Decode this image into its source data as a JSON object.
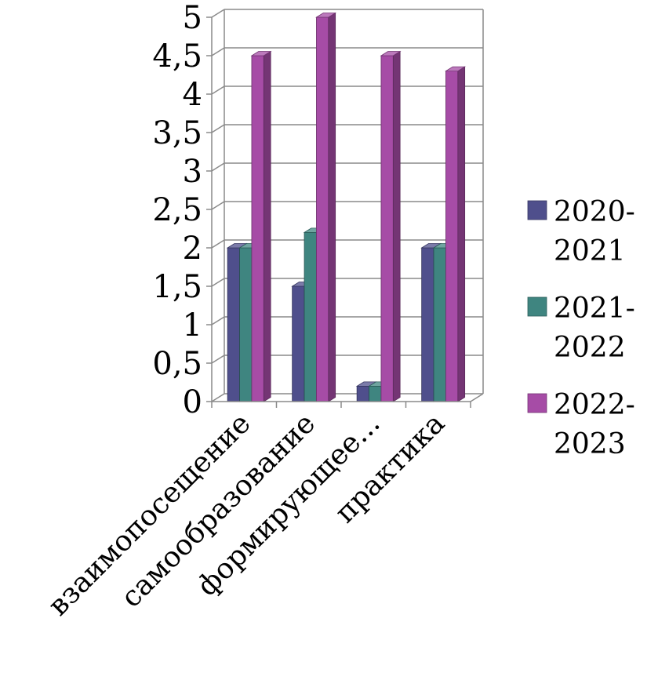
{
  "chart_data": {
    "type": "bar",
    "categories": [
      "взаимопосещение",
      "самообразование",
      "формирующее...",
      "практика"
    ],
    "series": [
      {
        "name": "2020-2021",
        "values": [
          2,
          1.5,
          0.2,
          2
        ],
        "color": "#4F4F8C"
      },
      {
        "name": "2021-2022",
        "values": [
          2,
          2.2,
          0.2,
          2
        ],
        "color": "#3F8580"
      },
      {
        "name": "2022-2023",
        "values": [
          4.5,
          5,
          4.5,
          4.3
        ],
        "color": "#A64CA6"
      }
    ],
    "y_ticks": [
      "0",
      "0,5",
      "1",
      "1,5",
      "2",
      "2,5",
      "3",
      "3,5",
      "4",
      "4,5",
      "5"
    ],
    "ylim": [
      0,
      5
    ],
    "legend": {
      "placement": "right",
      "entries": [
        {
          "line1": "2020-",
          "line2": "2021"
        },
        {
          "line1": "2021-",
          "line2": "2022"
        },
        {
          "line1": "2022-",
          "line2": "2023"
        }
      ]
    },
    "grid": true
  }
}
